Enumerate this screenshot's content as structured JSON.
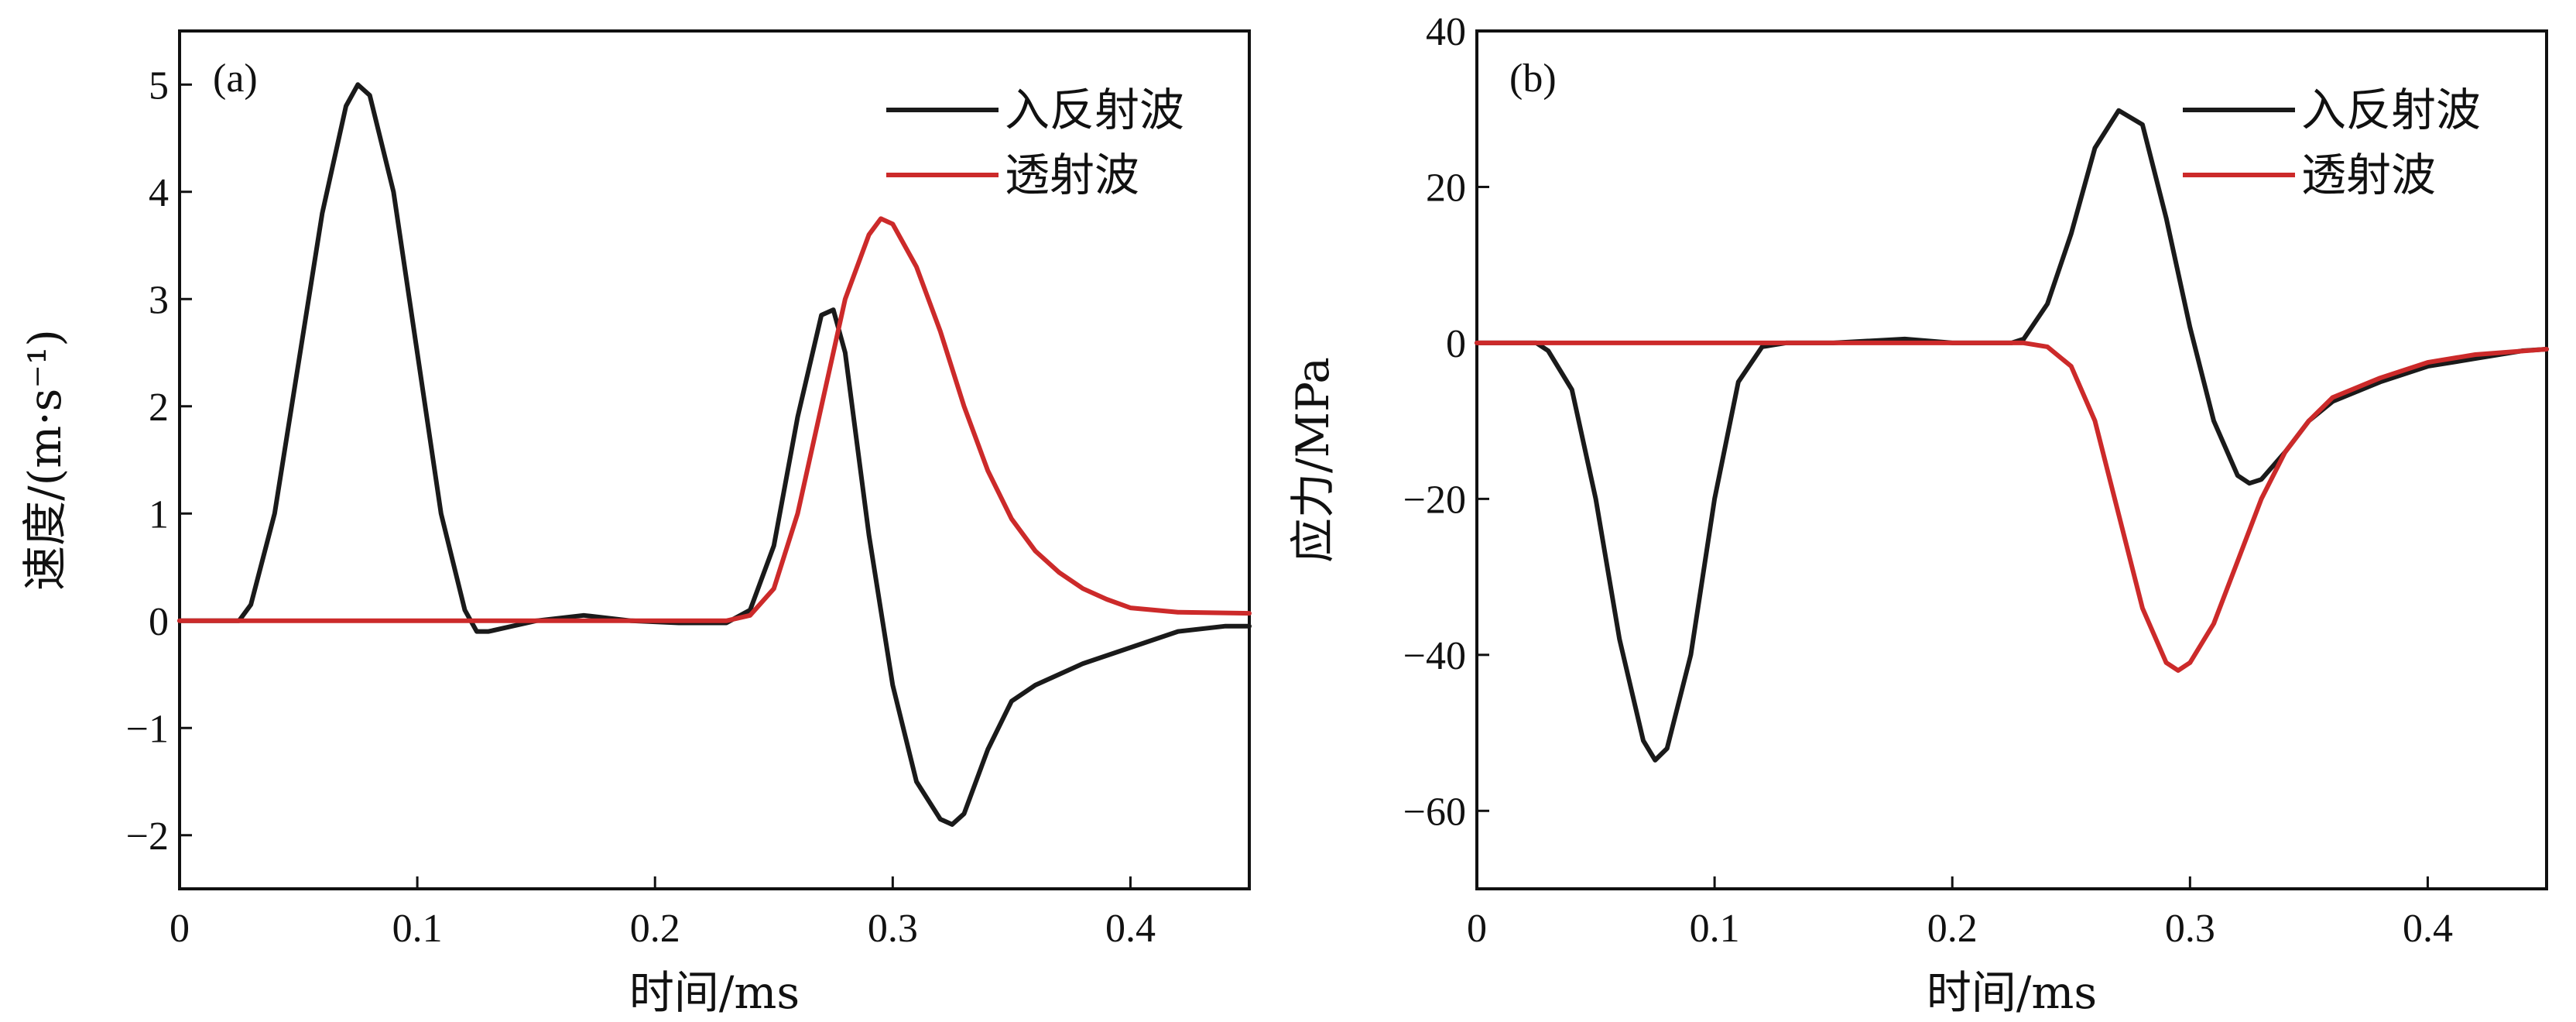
{
  "colors": {
    "incident_reflected": "#1a1a1a",
    "transmitted": "#cc2a2a",
    "axis": "#111111"
  },
  "chart_data": [
    {
      "type": "line",
      "panel_label": "(a)",
      "xlabel": "时间/ms",
      "ylabel": "速度/(m·s⁻¹)",
      "xlim": [
        0,
        0.45
      ],
      "ylim": [
        -2.5,
        5.5
      ],
      "xticks": [
        0,
        0.1,
        0.2,
        0.3,
        0.4
      ],
      "xtick_labels": [
        "0",
        "0.1",
        "0.2",
        "0.3",
        "0.4"
      ],
      "yticks": [
        -2,
        -1,
        0,
        1,
        2,
        3,
        4,
        5
      ],
      "ytick_labels": [
        "−2",
        "−1",
        "0",
        "1",
        "2",
        "3",
        "4",
        "5"
      ],
      "legend": [
        "入反射波",
        "透射波"
      ],
      "series": [
        {
          "name": "入反射波",
          "color_key": "incident_reflected",
          "x": [
            0,
            0.025,
            0.03,
            0.04,
            0.05,
            0.06,
            0.07,
            0.075,
            0.08,
            0.09,
            0.1,
            0.11,
            0.12,
            0.125,
            0.13,
            0.14,
            0.15,
            0.17,
            0.19,
            0.21,
            0.23,
            0.24,
            0.25,
            0.26,
            0.27,
            0.275,
            0.28,
            0.29,
            0.3,
            0.31,
            0.32,
            0.325,
            0.33,
            0.34,
            0.35,
            0.36,
            0.38,
            0.4,
            0.42,
            0.44,
            0.45
          ],
          "y": [
            0,
            0,
            0.15,
            1.0,
            2.4,
            3.8,
            4.8,
            5.0,
            4.9,
            4.0,
            2.5,
            1.0,
            0.1,
            -0.1,
            -0.1,
            -0.05,
            0.0,
            0.05,
            0.0,
            -0.02,
            -0.02,
            0.1,
            0.7,
            1.9,
            2.85,
            2.9,
            2.5,
            0.8,
            -0.6,
            -1.5,
            -1.85,
            -1.9,
            -1.8,
            -1.2,
            -0.75,
            -0.6,
            -0.4,
            -0.25,
            -0.1,
            -0.05,
            -0.05
          ]
        },
        {
          "name": "透射波",
          "color_key": "transmitted",
          "x": [
            0,
            0.2,
            0.23,
            0.24,
            0.25,
            0.26,
            0.27,
            0.28,
            0.29,
            0.295,
            0.3,
            0.31,
            0.32,
            0.33,
            0.34,
            0.35,
            0.36,
            0.37,
            0.38,
            0.39,
            0.4,
            0.42,
            0.45
          ],
          "y": [
            0,
            0,
            0,
            0.05,
            0.3,
            1.0,
            2.0,
            3.0,
            3.6,
            3.75,
            3.7,
            3.3,
            2.7,
            2.0,
            1.4,
            0.95,
            0.65,
            0.45,
            0.3,
            0.2,
            0.12,
            0.08,
            0.07
          ]
        }
      ]
    },
    {
      "type": "line",
      "panel_label": "(b)",
      "xlabel": "时间/ms",
      "ylabel": "应力/MPa",
      "xlim": [
        0,
        0.45
      ],
      "ylim": [
        -70,
        40
      ],
      "xticks": [
        0,
        0.1,
        0.2,
        0.3,
        0.4
      ],
      "xtick_labels": [
        "0",
        "0.1",
        "0.2",
        "0.3",
        "0.4"
      ],
      "yticks": [
        -60,
        -40,
        -20,
        0,
        20,
        40
      ],
      "ytick_labels": [
        "−60",
        "−40",
        "−20",
        "0",
        "20",
        "40"
      ],
      "legend": [
        "入反射波",
        "透射波"
      ],
      "series": [
        {
          "name": "入反射波",
          "color_key": "incident_reflected",
          "x": [
            0,
            0.025,
            0.03,
            0.04,
            0.05,
            0.06,
            0.07,
            0.075,
            0.08,
            0.09,
            0.1,
            0.11,
            0.12,
            0.13,
            0.15,
            0.18,
            0.2,
            0.225,
            0.23,
            0.24,
            0.25,
            0.26,
            0.27,
            0.28,
            0.29,
            0.3,
            0.31,
            0.32,
            0.325,
            0.33,
            0.34,
            0.35,
            0.36,
            0.38,
            0.4,
            0.42,
            0.44,
            0.45
          ],
          "y": [
            0,
            0,
            -1,
            -6,
            -20,
            -38,
            -51,
            -53.5,
            -52,
            -40,
            -20,
            -5,
            -0.5,
            0,
            0,
            0.5,
            0,
            0,
            0.5,
            5,
            14,
            25,
            29.8,
            28,
            16,
            2,
            -10,
            -17,
            -18,
            -17.5,
            -14,
            -10,
            -7.5,
            -5,
            -3,
            -2,
            -1,
            -0.8
          ]
        },
        {
          "name": "透射波",
          "color_key": "transmitted",
          "x": [
            0,
            0.2,
            0.23,
            0.24,
            0.25,
            0.26,
            0.27,
            0.28,
            0.29,
            0.295,
            0.3,
            0.31,
            0.32,
            0.33,
            0.34,
            0.35,
            0.36,
            0.38,
            0.4,
            0.42,
            0.45
          ],
          "y": [
            0,
            0,
            0,
            -0.5,
            -3,
            -10,
            -22,
            -34,
            -41,
            -42,
            -41,
            -36,
            -28,
            -20,
            -14,
            -10,
            -7,
            -4.5,
            -2.5,
            -1.5,
            -0.8
          ]
        }
      ]
    }
  ]
}
